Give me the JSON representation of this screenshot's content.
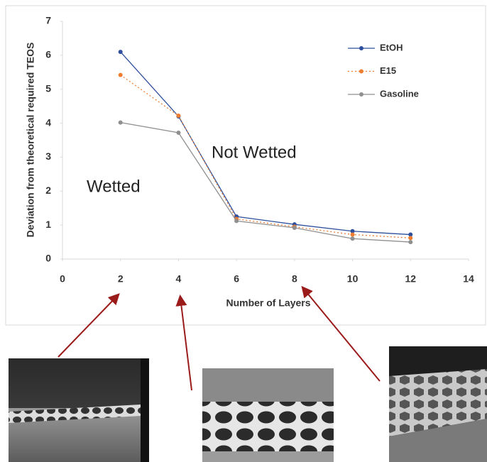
{
  "chart_data": {
    "type": "line",
    "x_label": "Number of Layers",
    "y_label": "Deviation from theoretical required TEOS",
    "x": [
      2,
      4,
      6,
      8,
      10,
      12
    ],
    "series": [
      {
        "name": "EtOH",
        "color": "#2e4f9c",
        "line_style": "solid",
        "values": [
          6.1,
          4.2,
          1.25,
          1.02,
          0.82,
          0.72
        ]
      },
      {
        "name": "E15",
        "color": "#ed7d31",
        "line_style": "dotted",
        "values": [
          5.42,
          4.22,
          1.18,
          0.95,
          0.72,
          0.62
        ]
      },
      {
        "name": "Gasoline",
        "color": "#8f8f8f",
        "line_style": "solid",
        "values": [
          4.02,
          3.72,
          1.12,
          0.92,
          0.6,
          0.5
        ]
      }
    ],
    "xlim": [
      0,
      14
    ],
    "xticks": [
      0,
      2,
      4,
      6,
      8,
      10,
      12,
      14
    ],
    "ylim": [
      0,
      7
    ],
    "yticks": [
      0,
      1,
      2,
      3,
      4,
      5,
      6,
      7
    ],
    "grid": false,
    "annotations": [
      "Wetted",
      "Not Wetted"
    ]
  }
}
